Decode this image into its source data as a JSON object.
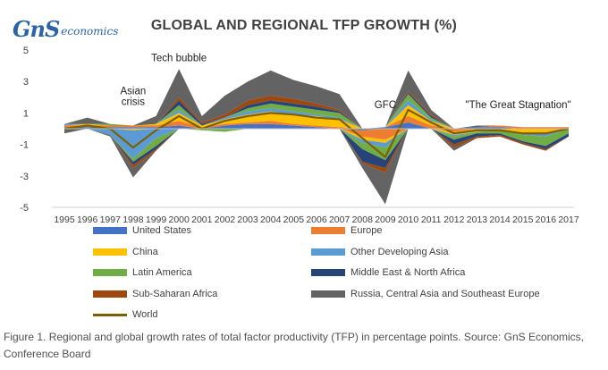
{
  "brand": {
    "mark": "GnS",
    "name": "economics"
  },
  "caption": "Figure 1. Regional and global growth rates of total factor productivity (TFP) in percentage points. Source: GnS Economics, Conference Board",
  "chart_data": {
    "type": "area",
    "stacked": true,
    "title": "GLOBAL AND REGIONAL TFP GROWTH (%)",
    "xlabel": "",
    "ylabel": "",
    "ylim": [
      -5,
      5
    ],
    "yticks": [
      5,
      3,
      1,
      -1,
      -3,
      -5
    ],
    "grid": false,
    "legend_position": "bottom",
    "x": [
      1995,
      1996,
      1997,
      1998,
      1999,
      2000,
      2001,
      2002,
      2003,
      2004,
      2005,
      2006,
      2007,
      2008,
      2009,
      2010,
      2011,
      2012,
      2013,
      2014,
      2015,
      2016,
      2017
    ],
    "series": [
      {
        "name": "United States",
        "color": "#4472c4",
        "values": [
          0.1,
          0.1,
          0.1,
          0.1,
          0.1,
          0.2,
          0.0,
          0.2,
          0.3,
          0.3,
          0.2,
          0.1,
          0.0,
          -0.1,
          0.1,
          0.4,
          0.0,
          0.0,
          0.1,
          0.1,
          0.0,
          0.0,
          0.0
        ]
      },
      {
        "name": "Europe",
        "color": "#ed7d31",
        "values": [
          0.1,
          0.1,
          0.1,
          0.1,
          0.1,
          0.3,
          0.1,
          0.1,
          0.1,
          0.2,
          0.1,
          0.1,
          0.1,
          -0.4,
          -0.7,
          0.4,
          0.2,
          -0.2,
          0.0,
          0.1,
          0.1,
          0.1,
          0.1
        ]
      },
      {
        "name": "China",
        "color": "#ffc000",
        "values": [
          0.0,
          0.1,
          0.0,
          -0.1,
          0.1,
          0.5,
          0.1,
          0.3,
          0.5,
          0.6,
          0.6,
          0.6,
          0.5,
          -0.2,
          -0.2,
          0.7,
          0.3,
          -0.2,
          -0.2,
          -0.1,
          -0.3,
          -0.3,
          0.0
        ]
      },
      {
        "name": "Other Developing Asia",
        "color": "#5b9bd5",
        "values": [
          0.1,
          0.0,
          -0.4,
          -1.8,
          -0.6,
          0.2,
          0.0,
          0.1,
          0.2,
          0.2,
          0.2,
          0.1,
          0.1,
          -0.2,
          -0.3,
          0.3,
          0.1,
          -0.1,
          0.0,
          0.0,
          -0.1,
          -0.2,
          0.0
        ]
      },
      {
        "name": "Latin America",
        "color": "#70ad47",
        "values": [
          0.0,
          0.0,
          0.1,
          -0.2,
          -0.5,
          0.3,
          -0.1,
          -0.2,
          0.2,
          0.3,
          0.3,
          0.3,
          0.3,
          -0.4,
          -0.8,
          0.4,
          0.1,
          -0.2,
          -0.1,
          -0.2,
          -0.4,
          -0.6,
          -0.3
        ]
      },
      {
        "name": "Middle East & North Africa",
        "color": "#264478",
        "values": [
          0.0,
          0.0,
          0.0,
          -0.2,
          -0.2,
          0.3,
          0.1,
          0.0,
          0.2,
          0.2,
          0.2,
          0.2,
          0.1,
          -0.8,
          -0.5,
          0.1,
          0.1,
          -0.3,
          -0.2,
          -0.1,
          -0.1,
          -0.2,
          -0.2
        ]
      },
      {
        "name": "Sub-Saharan Africa",
        "color": "#9e480e",
        "values": [
          0.0,
          0.0,
          0.0,
          -0.2,
          -0.1,
          0.2,
          0.1,
          0.2,
          0.3,
          0.3,
          0.3,
          0.2,
          0.1,
          -0.1,
          -0.3,
          0.1,
          0.1,
          -0.2,
          -0.1,
          -0.1,
          -0.1,
          -0.1,
          0.0
        ]
      },
      {
        "name": "Russia, Central Asia and Southeast Europe",
        "color": "#636363",
        "values": [
          -0.3,
          0.4,
          -0.1,
          -0.6,
          0.5,
          1.8,
          0.4,
          1.2,
          1.2,
          1.6,
          1.2,
          1.1,
          1.0,
          -0.3,
          -2.0,
          1.3,
          0.3,
          -0.2,
          0.1,
          0.0,
          0.0,
          0.0,
          0.0
        ]
      }
    ],
    "world": {
      "name": "World",
      "color": "#7f6000",
      "values": [
        0.0,
        0.2,
        0.0,
        -1.2,
        -0.1,
        0.8,
        0.0,
        0.5,
        0.8,
        1.0,
        0.9,
        0.7,
        0.6,
        -0.6,
        -1.8,
        1.2,
        0.4,
        -0.3,
        -0.1,
        -0.1,
        -0.3,
        -0.3,
        0.0
      ]
    },
    "annotations": [
      {
        "text": "Tech bubble",
        "year": 2000,
        "value": 4.3
      },
      {
        "text": "Asian",
        "year": 1998,
        "value": 2.2
      },
      {
        "text": "crisis",
        "year": 1998,
        "value": 1.5
      },
      {
        "text": "GFC",
        "year": 2009,
        "value": 1.3
      },
      {
        "text": "\"The Great Stagnation\"",
        "year": 2014.8,
        "value": 1.3
      }
    ]
  }
}
